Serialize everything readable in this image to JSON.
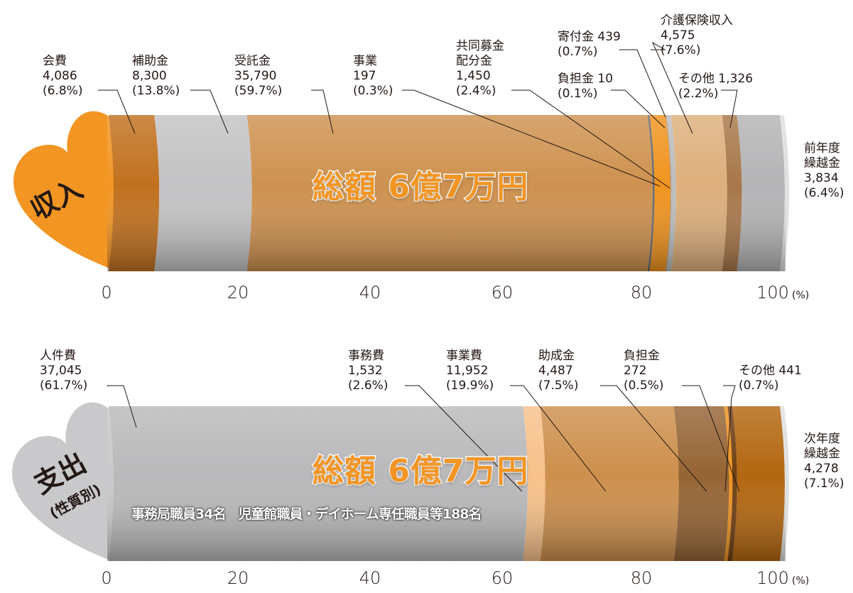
{
  "charts": [
    {
      "id": "income",
      "heart_label": "収入",
      "total_label": "総額 6億7万円",
      "segments": [
        {
          "name": "会費",
          "value_label": "4,086",
          "pct_label": "(6.8%)",
          "percent": 6.8,
          "color": "#C1701E"
        },
        {
          "name": "補助金",
          "value_label": "8,300",
          "pct_label": "(13.8%)",
          "percent": 13.8,
          "color": "#C3C3C5"
        },
        {
          "name": "受託金",
          "value_label": "35,790",
          "pct_label": "(59.7%)",
          "percent": 59.7,
          "color": "#CE914F"
        },
        {
          "name": "事業",
          "value_label": "197",
          "pct_label": "(0.3%)",
          "percent": 0.3,
          "color": "#6A6A6A"
        },
        {
          "name": "共同募金\n配分金",
          "value_label": "1,450",
          "pct_label": "(2.4%)",
          "percent": 2.4,
          "color": "#F0931F"
        },
        {
          "name": "負担金",
          "value_label": "10",
          "pct_label": "(0.1%)",
          "percent": 0.1,
          "color": "#8E8E8E"
        },
        {
          "name": "寄付金",
          "value_label": "439",
          "pct_label": "(0.7%)",
          "percent": 0.7,
          "color": "#BDBDBD"
        },
        {
          "name": "介護保険収入",
          "value_label": "4,575",
          "pct_label": "(7.6%)",
          "percent": 7.6,
          "color": "#DDAF7C"
        },
        {
          "name": "その他",
          "value_label": "1,326",
          "pct_label": "(2.2%)",
          "percent": 2.2,
          "color": "#A8774A"
        },
        {
          "name": "前年度\n繰越金",
          "value_label": "3,834",
          "pct_label": "(6.4%)",
          "percent": 6.4,
          "color": "#B4B4B6"
        }
      ],
      "labels": [
        "会費\n4,086\n(6.8%)",
        "補助金\n8,300\n(13.8%)",
        "受託金\n35,790\n(59.7%)",
        "事業\n197\n(0.3%)",
        "共同募金\n配分金\n1,450\n(2.4%)",
        "負担金 10\n(0.1%)",
        "寄付金 439\n(0.7%)",
        "介護保険収入\n4,575\n(7.6%)",
        "その他 1,326\n(2.2%)",
        "前年度\n繰越金\n3,834\n(6.4%)"
      ]
    },
    {
      "id": "expense",
      "heart_label": "支出",
      "heart_sublabel": "(性質別)",
      "total_label": "総額 6億7万円",
      "note": "事務局職員34名　児童館職員・デイホーム専任職員等188名",
      "segments": [
        {
          "name": "人件費",
          "value_label": "37,045",
          "pct_label": "(61.7%)",
          "percent": 61.7,
          "color": "#B9B9BB"
        },
        {
          "name": "事務費",
          "value_label": "1,532",
          "pct_label": "(2.6%)",
          "percent": 2.6,
          "color": "#F7C18A"
        },
        {
          "name": "事業費",
          "value_label": "11,952",
          "pct_label": "(19.9%)",
          "percent": 19.9,
          "color": "#CD8F4C"
        },
        {
          "name": "助成金",
          "value_label": "4,487",
          "pct_label": "(7.5%)",
          "percent": 7.5,
          "color": "#956434"
        },
        {
          "name": "負担金",
          "value_label": "272",
          "pct_label": "(0.5%)",
          "percent": 0.5,
          "color": "#F0931F"
        },
        {
          "name": "その他",
          "value_label": "441",
          "pct_label": "(0.7%)",
          "percent": 0.7,
          "color": "#6E3E10"
        },
        {
          "name": "次年度\n繰越金",
          "value_label": "4,278",
          "pct_label": "(7.1%)",
          "percent": 7.1,
          "color": "#B2660F"
        }
      ],
      "labels": [
        "人件費\n37,045\n(61.7%)",
        "事務費\n1,532\n(2.6%)",
        "事業費\n11,952\n(19.9%)",
        "助成金\n4,487\n(7.5%)",
        "負担金\n272\n(0.5%)",
        "その他 441\n(0.7%)",
        "次年度\n繰越金\n4,278\n(7.1%)"
      ]
    }
  ],
  "axis": {
    "ticks": [
      "0",
      "20",
      "40",
      "60",
      "80",
      "100"
    ],
    "unit": "(%)"
  },
  "colors": {
    "heart_income": "#F39523",
    "heart_expense": "#C9C9CB",
    "total_text_fill": "#F39523",
    "total_text_stroke": "#ffffff"
  },
  "chart_data": [
    {
      "type": "bar",
      "title": "",
      "categories": [
        "会費",
        "補助金",
        "受託金",
        "事業",
        "共同募金配分金",
        "負担金",
        "寄付金",
        "介護保険収入",
        "その他",
        "前年度繰越金"
      ],
      "values": [
        4086,
        8300,
        35790,
        197,
        1450,
        10,
        439,
        4575,
        1326,
        3834
      ],
      "percent": [
        6.8,
        13.8,
        59.7,
        0.3,
        2.4,
        0.1,
        0.7,
        7.6,
        2.2,
        6.4
      ],
      "xlim": [
        0,
        100
      ]
    },
    {
      "type": "bar",
      "title": "",
      "categories": [
        "人件費",
        "事務費",
        "事業費",
        "助成金",
        "負担金",
        "その他",
        "次年度繰越金"
      ],
      "values": [
        37045,
        1532,
        11952,
        4487,
        272,
        441,
        4278
      ],
      "percent": [
        61.7,
        2.6,
        19.9,
        7.5,
        0.5,
        0.7,
        7.1
      ],
      "xlim": [
        0,
        100
      ]
    }
  ]
}
